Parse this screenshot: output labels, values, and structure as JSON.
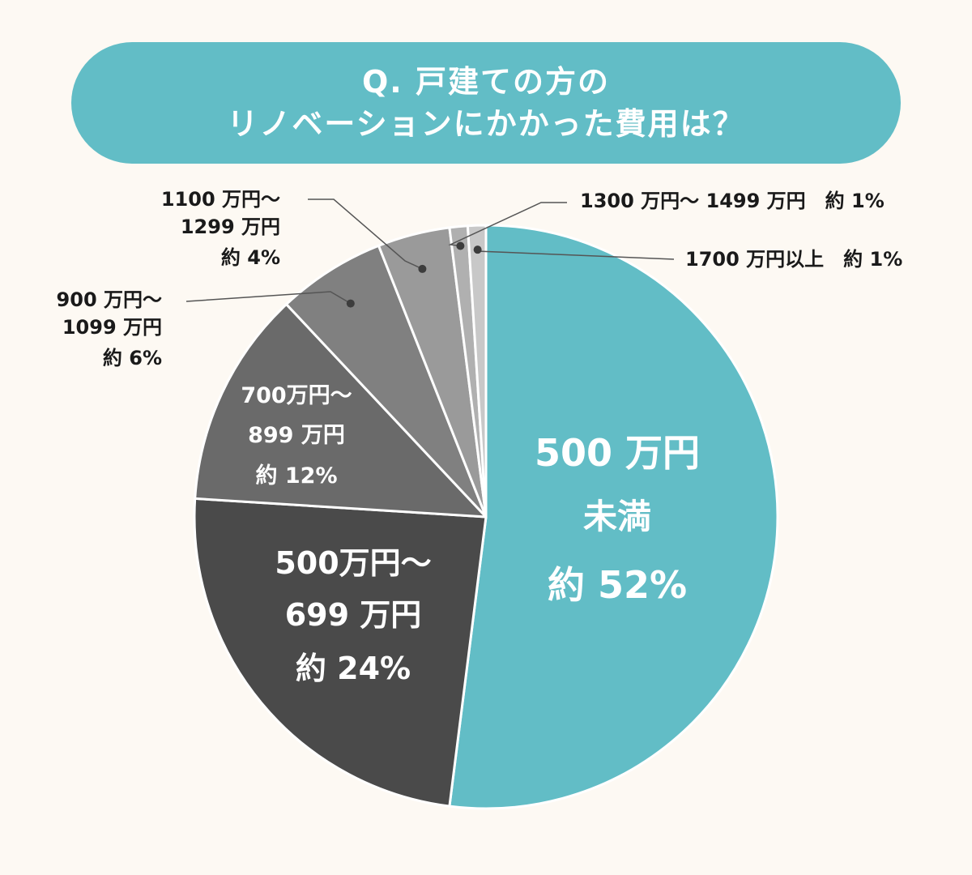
{
  "title": {
    "line1": "Q. 戸建ての方の",
    "line2": "リノベーションにかかった費用は？"
  },
  "chart_data": {
    "type": "pie",
    "start_angle_deg": 0,
    "direction": "clockwise",
    "slices": [
      {
        "category": "500万円未満",
        "value": 52,
        "color": "#62bdc6",
        "label_lines": [
          "500 万円",
          "未満",
          "約 52%"
        ],
        "placement": "inside"
      },
      {
        "category": "500万円〜699万円",
        "value": 24,
        "color": "#4a4a4a",
        "label_lines": [
          "500万円〜",
          "699 万円",
          "約 24%"
        ],
        "placement": "inside"
      },
      {
        "category": "700万円〜899万円",
        "value": 12,
        "color": "#6a6a6a",
        "label_lines": [
          "700万円〜",
          "899 万円",
          "約 12%"
        ],
        "placement": "inside"
      },
      {
        "category": "900万円〜1099万円",
        "value": 6,
        "color": "#808080",
        "label_lines": [
          "900 万円〜",
          "1099 万円",
          "約 6%"
        ],
        "placement": "outside"
      },
      {
        "category": "1100万円〜1299万円",
        "value": 4,
        "color": "#9a9a9a",
        "label_lines": [
          "1100 万円〜",
          "1299 万円",
          "約 4%"
        ],
        "placement": "outside"
      },
      {
        "category": "1300万円〜1499万円",
        "value": 1,
        "color": "#b0b0b0",
        "label_lines": [
          "1300 万円〜 1499 万円　約 1%"
        ],
        "placement": "outside"
      },
      {
        "category": "1700万円以上",
        "value": 1,
        "color": "#c8c8c8",
        "label_lines": [
          "1700 万円以上　約 1%"
        ],
        "placement": "outside"
      }
    ]
  }
}
